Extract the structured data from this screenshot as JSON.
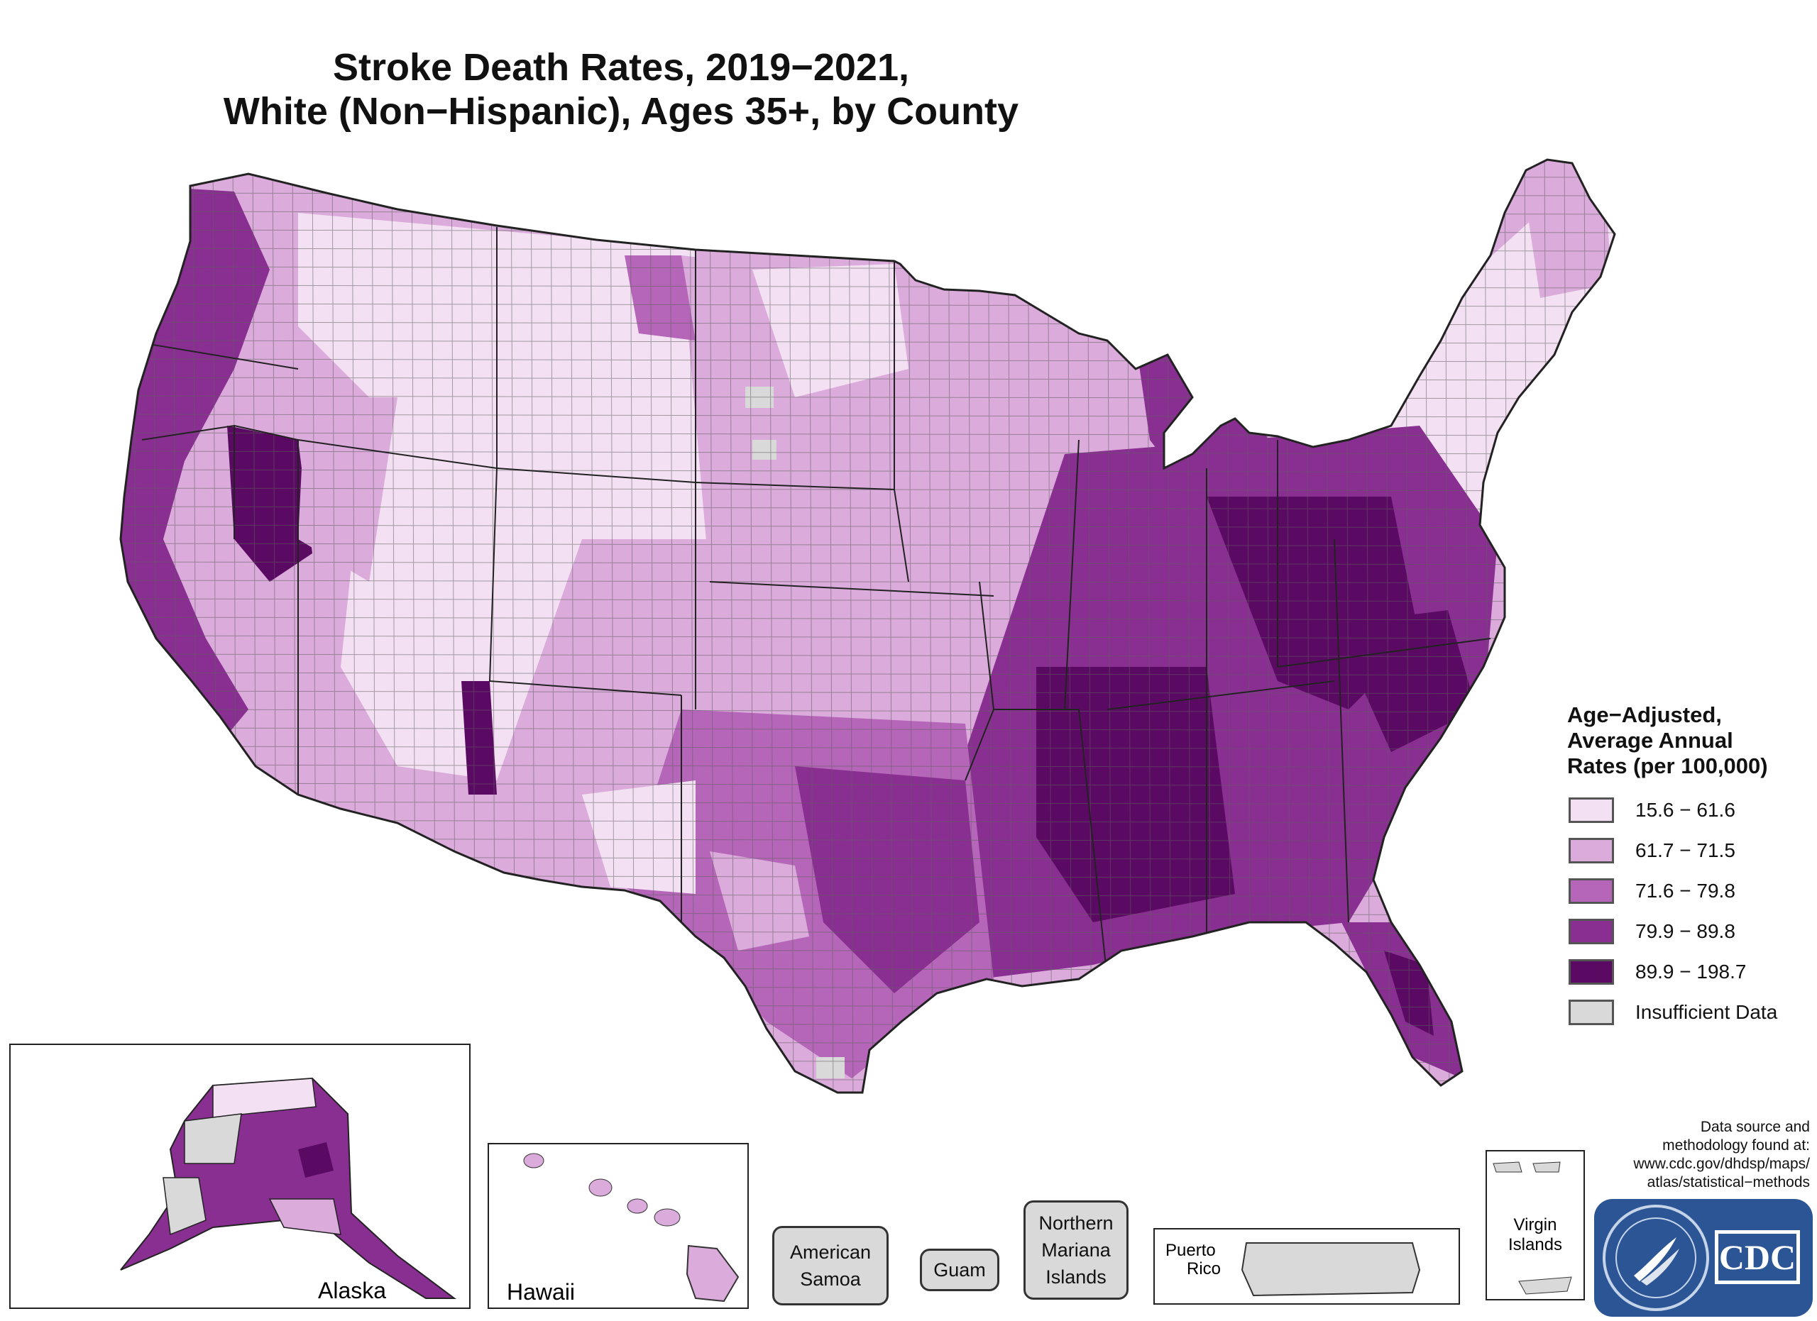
{
  "title": {
    "line1": "Stroke Death Rates, 2019−2021,",
    "line2": "White (Non−Hispanic), Ages 35+, by County"
  },
  "legend": {
    "title_line1": "Age−Adjusted,",
    "title_line2": "Average Annual",
    "title_line3": "Rates (per 100,000)",
    "items": [
      {
        "label": "15.6 − 61.6",
        "color": "#f3e1f3"
      },
      {
        "label": "61.7 − 71.5",
        "color": "#dbabdb"
      },
      {
        "label": "71.6 − 79.8",
        "color": "#b566b9"
      },
      {
        "label": "79.9 − 89.8",
        "color": "#8a2f92"
      },
      {
        "label": "89.9 − 198.7",
        "color": "#5b0a63"
      },
      {
        "label": "Insufficient Data",
        "color": "#d9d9d9"
      }
    ]
  },
  "insets": {
    "alaska": "Alaska",
    "hawaii": "Hawaii",
    "puerto_rico_line1": "Puerto",
    "puerto_rico_line2": "Rico",
    "virgin_islands_line1": "Virgin",
    "virgin_islands_line2": "Islands"
  },
  "territories": {
    "american_samoa_line1": "American",
    "american_samoa_line2": "Samoa",
    "guam": "Guam",
    "northern_mariana_line1": "Northern",
    "northern_mariana_line2": "Mariana",
    "northern_mariana_line3": "Islands"
  },
  "source": {
    "line1": "Data source and",
    "line2": "methodology found at:",
    "line3": "www.cdc.gov/dhdsp/maps/",
    "line4": "atlas/statistical−methods"
  },
  "logo": {
    "text": "CDC"
  }
}
